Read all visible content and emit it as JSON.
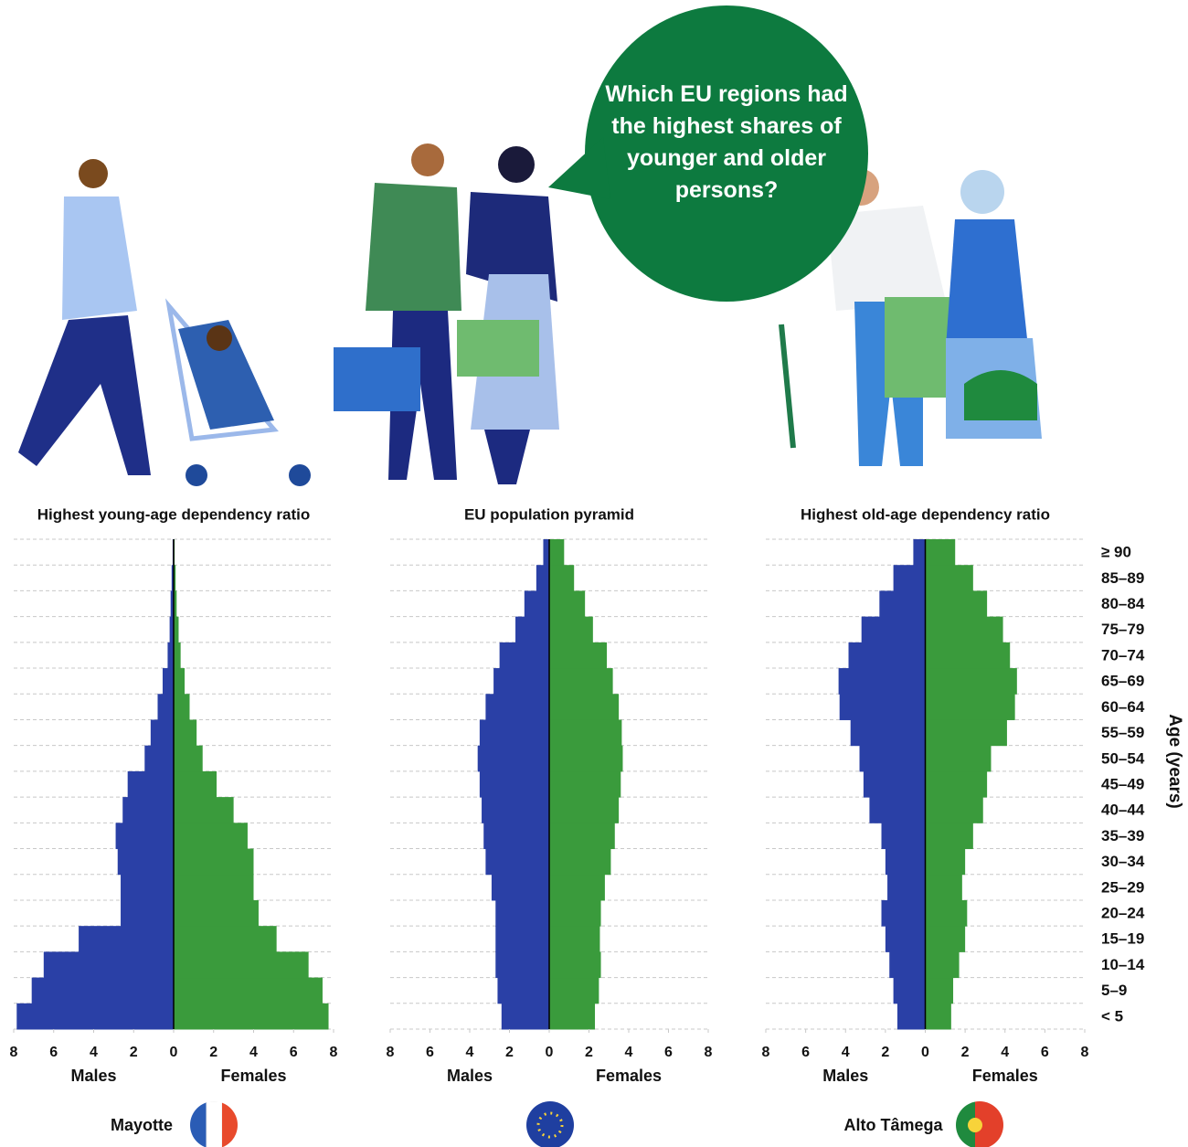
{
  "speech_bubble": "Which EU regions had the highest shares of younger and older persons?",
  "chart_data": [
    {
      "type": "pyramid",
      "title": "Highest young-age dependency ratio",
      "region": "Mayotte",
      "xlim": [
        -8,
        8
      ],
      "xticks": [
        {
          "value": -8,
          "label": "8"
        },
        {
          "value": -6,
          "label": "6"
        },
        {
          "value": -4,
          "label": "4"
        },
        {
          "value": -2,
          "label": "2"
        },
        0,
        2,
        4,
        6,
        8
      ],
      "series": [
        {
          "name": "Males",
          "color": "#2a40a6",
          "values": [
            7.85,
            7.1,
            6.5,
            4.75,
            2.65,
            2.65,
            2.8,
            2.9,
            2.55,
            2.3,
            1.45,
            1.15,
            0.8,
            0.55,
            0.3,
            0.2,
            0.15,
            0.1,
            0.05
          ]
        },
        {
          "name": "Females",
          "color": "#3a9b3c",
          "values": [
            7.75,
            7.45,
            6.75,
            5.15,
            4.25,
            4.0,
            4.0,
            3.7,
            3.0,
            2.15,
            1.45,
            1.15,
            0.8,
            0.55,
            0.35,
            0.25,
            0.15,
            0.1,
            0.05
          ]
        }
      ]
    },
    {
      "type": "pyramid",
      "title": "EU population pyramid",
      "xlim": [
        -8,
        8
      ],
      "xticks": [
        {
          "value": -8,
          "label": "8"
        },
        {
          "value": -6,
          "label": "6"
        },
        {
          "value": -4,
          "label": "4"
        },
        {
          "value": -2,
          "label": "2"
        },
        0,
        2,
        4,
        6,
        8
      ],
      "series": [
        {
          "name": "Males",
          "color": "#2a40a6",
          "values": [
            2.4,
            2.6,
            2.7,
            2.7,
            2.7,
            2.9,
            3.2,
            3.3,
            3.4,
            3.5,
            3.6,
            3.5,
            3.2,
            2.8,
            2.5,
            1.7,
            1.25,
            0.65,
            0.3
          ]
        },
        {
          "name": "Females",
          "color": "#3a9b3c",
          "values": [
            2.3,
            2.5,
            2.6,
            2.55,
            2.6,
            2.8,
            3.1,
            3.3,
            3.5,
            3.6,
            3.7,
            3.65,
            3.5,
            3.2,
            2.9,
            2.2,
            1.8,
            1.25,
            0.75
          ]
        }
      ]
    },
    {
      "type": "pyramid",
      "title": "Highest old-age dependency ratio",
      "region": "Alto Tâmega",
      "xlim": [
        -8,
        8
      ],
      "xticks": [
        {
          "value": -8,
          "label": "8"
        },
        {
          "value": -6,
          "label": "6"
        },
        {
          "value": -4,
          "label": "4"
        },
        {
          "value": -2,
          "label": "2"
        },
        0,
        2,
        4,
        6,
        8
      ],
      "ylabel": "Age (years)",
      "categories": [
        "< 5",
        "5–9",
        "10–14",
        "15–19",
        "20–24",
        "25–29",
        "30–34",
        "35–39",
        "40–44",
        "45–49",
        "50–54",
        "55–59",
        "60–64",
        "65–69",
        "70–74",
        "75–79",
        "80–84",
        "85–89",
        "≥ 90"
      ],
      "series": [
        {
          "name": "Males",
          "color": "#2a40a6",
          "values": [
            1.4,
            1.6,
            1.8,
            2.0,
            2.2,
            1.9,
            2.0,
            2.2,
            2.8,
            3.1,
            3.3,
            3.75,
            4.3,
            4.35,
            3.85,
            3.2,
            2.3,
            1.6,
            0.6
          ]
        },
        {
          "name": "Females",
          "color": "#3a9b3c",
          "values": [
            1.3,
            1.4,
            1.7,
            2.0,
            2.1,
            1.85,
            2.0,
            2.4,
            2.9,
            3.1,
            3.3,
            4.1,
            4.5,
            4.6,
            4.25,
            3.9,
            3.1,
            2.4,
            1.5
          ]
        }
      ]
    }
  ]
}
